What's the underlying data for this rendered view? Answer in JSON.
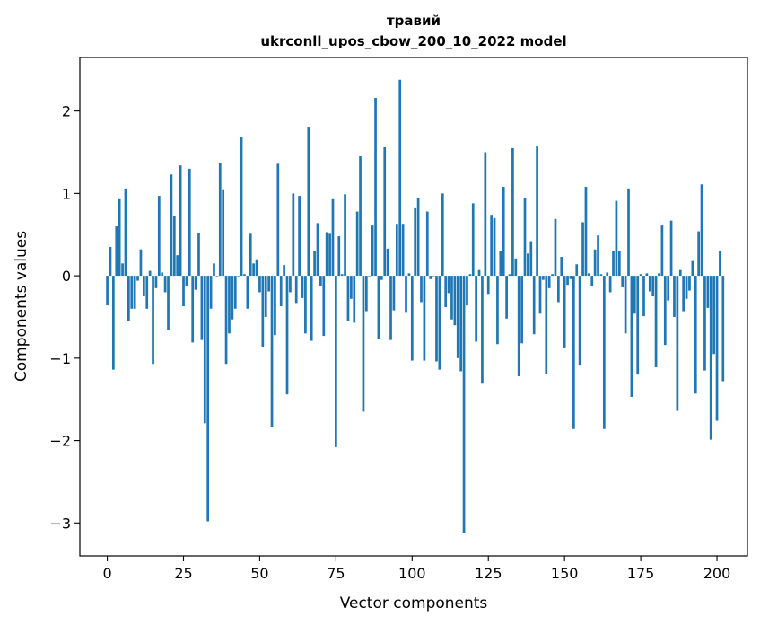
{
  "chart_data": {
    "type": "bar",
    "title": "травий",
    "subtitle": "ukrconll_upos_cbow_200_10_2022 model",
    "xlabel": "Vector components",
    "ylabel": "Components values",
    "xlim": [
      -9,
      210
    ],
    "ylim": [
      -3.4,
      2.65
    ],
    "xticks": [
      0,
      25,
      50,
      75,
      100,
      125,
      150,
      175,
      200
    ],
    "xtick_labels": [
      "0",
      "25",
      "50",
      "75",
      "100",
      "125",
      "150",
      "175",
      "200"
    ],
    "yticks": [
      -3,
      -2,
      -1,
      0,
      1,
      2
    ],
    "ytick_labels": [
      "−3",
      "−2",
      "−1",
      "0",
      "1",
      "2"
    ],
    "bar_color": "#1f77b4",
    "grid": false,
    "values": [
      -0.36,
      0.35,
      -1.14,
      0.6,
      0.93,
      0.15,
      1.06,
      -0.55,
      -0.4,
      -0.4,
      -0.06,
      0.32,
      -0.25,
      -0.4,
      0.06,
      -1.07,
      -0.15,
      0.97,
      0.04,
      -0.2,
      -0.66,
      1.23,
      0.73,
      0.25,
      1.34,
      -0.37,
      -0.13,
      1.3,
      -0.81,
      -0.17,
      0.52,
      -0.78,
      -1.79,
      -2.98,
      -0.4,
      0.15,
      0.0,
      1.37,
      1.04,
      -1.07,
      -0.7,
      -0.53,
      -0.4,
      0.0,
      1.68,
      0.02,
      -0.4,
      0.51,
      0.15,
      0.2,
      -0.2,
      -0.86,
      -0.5,
      -0.19,
      -1.84,
      -0.72,
      1.36,
      -0.37,
      0.13,
      -1.44,
      -0.2,
      1.0,
      -0.33,
      0.97,
      -0.27,
      -0.7,
      1.81,
      -0.79,
      0.3,
      0.64,
      -0.13,
      -0.73,
      0.53,
      0.51,
      0.93,
      -2.08,
      0.48,
      0.02,
      0.99,
      -0.55,
      -0.28,
      -0.57,
      0.78,
      1.45,
      -1.65,
      -0.43,
      0.0,
      0.61,
      2.16,
      -0.77,
      -0.05,
      1.56,
      0.33,
      -0.78,
      -0.42,
      0.62,
      2.38,
      0.62,
      -0.45,
      0.03,
      -1.03,
      0.82,
      0.95,
      -0.32,
      -1.03,
      0.78,
      -0.04,
      0.0,
      -1.04,
      -1.14,
      1.0,
      -0.38,
      -0.21,
      -0.53,
      -0.6,
      -1.0,
      -1.16,
      -3.12,
      -0.36,
      0.02,
      0.88,
      -0.8,
      0.07,
      -1.31,
      1.5,
      -0.22,
      0.74,
      0.7,
      -0.83,
      0.3,
      1.08,
      -0.52,
      0.02,
      1.55,
      0.21,
      -1.22,
      -0.82,
      0.95,
      0.27,
      0.42,
      -0.71,
      1.57,
      -0.46,
      -0.05,
      -1.19,
      -0.15,
      0.02,
      0.69,
      -0.32,
      0.23,
      -0.87,
      -0.11,
      -0.04,
      -1.86,
      0.14,
      -1.09,
      0.65,
      1.08,
      0.03,
      -0.13,
      0.32,
      0.49,
      0.02,
      -1.86,
      0.04,
      -0.2,
      0.3,
      0.91,
      0.3,
      -0.14,
      -0.7,
      1.06,
      -1.47,
      -0.46,
      -1.2,
      0.02,
      -0.49,
      0.03,
      -0.19,
      -0.25,
      -1.11,
      0.03,
      0.61,
      -0.84,
      -0.3,
      0.67,
      -0.5,
      -1.64,
      0.07,
      -0.43,
      -0.28,
      -0.18,
      0.18,
      -1.43,
      0.54,
      1.11,
      -1.15,
      -0.39,
      -1.99,
      -0.95,
      -1.76,
      0.3,
      -1.28
    ]
  }
}
